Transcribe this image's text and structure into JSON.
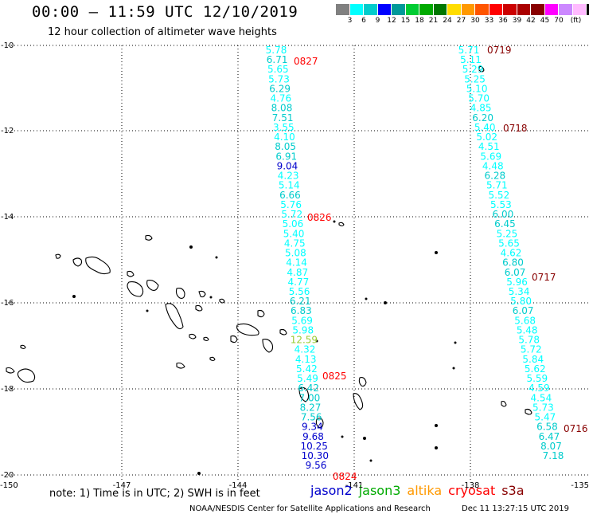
{
  "header": {
    "title": "00:00 – 11:59 UTC 12/10/2019",
    "subtitle": "12 hour collection of altimeter wave heights"
  },
  "colorbar": {
    "colors": [
      "#808080",
      "#00ffff",
      "#00cccc",
      "#0000ff",
      "#009999",
      "#00cc33",
      "#00aa00",
      "#007700",
      "#ffdd00",
      "#ff9900",
      "#ff5500",
      "#ff0000",
      "#cc0000",
      "#aa0000",
      "#880000",
      "#ff00ff",
      "#cc88ff",
      "#ffbbff",
      "#000000"
    ],
    "labels": [
      "3",
      "6",
      "9",
      "12",
      "15",
      "18",
      "21",
      "24",
      "27",
      "30",
      "33",
      "36",
      "39",
      "42",
      "45",
      "70",
      "(ft)"
    ]
  },
  "axes": {
    "lat_labels": [
      "-10",
      "-12",
      "-14",
      "-16",
      "-18",
      "-20"
    ],
    "lon_labels": [
      "-150",
      "-147",
      "-144",
      "-141",
      "-138",
      "-135"
    ]
  },
  "tracks": [
    {
      "name": "track-0827",
      "color": "#00cccc",
      "times": [
        {
          "label": "0827"
        },
        {
          "label": "0826"
        },
        {
          "label": "0825"
        },
        {
          "label": "0824"
        }
      ],
      "values": [
        {
          "v": "5.78",
          "c": "#00ffff"
        },
        {
          "v": "6.71",
          "c": "#00cccc"
        },
        {
          "v": "5.65",
          "c": "#00ffff"
        },
        {
          "v": "5.73",
          "c": "#00ffff"
        },
        {
          "v": "6.29",
          "c": "#00cccc"
        },
        {
          "v": "4.76",
          "c": "#00ffff"
        },
        {
          "v": "8.08",
          "c": "#00cccc"
        },
        {
          "v": "7.51",
          "c": "#00cccc"
        },
        {
          "v": "3.55",
          "c": "#00ffff"
        },
        {
          "v": "4.10",
          "c": "#00ffff"
        },
        {
          "v": "8.05",
          "c": "#00cccc"
        },
        {
          "v": "6.91",
          "c": "#00cccc"
        },
        {
          "v": "9.04",
          "c": "#0000cc"
        },
        {
          "v": "4.23",
          "c": "#00ffff"
        },
        {
          "v": "5.14",
          "c": "#00ffff"
        },
        {
          "v": "6.66",
          "c": "#00cccc"
        },
        {
          "v": "5.76",
          "c": "#00ffff"
        },
        {
          "v": "5.72",
          "c": "#00ffff"
        },
        {
          "v": "5.06",
          "c": "#00ffff"
        },
        {
          "v": "5.40",
          "c": "#00ffff"
        },
        {
          "v": "4.75",
          "c": "#00ffff"
        },
        {
          "v": "5.08",
          "c": "#00ffff"
        },
        {
          "v": "4.14",
          "c": "#00ffff"
        },
        {
          "v": "4.87",
          "c": "#00ffff"
        },
        {
          "v": "4.77",
          "c": "#00ffff"
        },
        {
          "v": "5.56",
          "c": "#00ffff"
        },
        {
          "v": "6.21",
          "c": "#00cccc"
        },
        {
          "v": "6.83",
          "c": "#00cccc"
        },
        {
          "v": "5.69",
          "c": "#00ffff"
        },
        {
          "v": "5.98",
          "c": "#00ffff"
        },
        {
          "v": "12.59",
          "c": "#99cc33"
        },
        {
          "v": "4.32",
          "c": "#00ffff"
        },
        {
          "v": "4.13",
          "c": "#00ffff"
        },
        {
          "v": "5.42",
          "c": "#00ffff"
        },
        {
          "v": "5.49",
          "c": "#00ffff"
        },
        {
          "v": "6.42",
          "c": "#00cccc"
        },
        {
          "v": "7.00",
          "c": "#00cccc"
        },
        {
          "v": "8.27",
          "c": "#00cccc"
        },
        {
          "v": "7.56",
          "c": "#00cccc"
        },
        {
          "v": "9.34",
          "c": "#0000cc"
        },
        {
          "v": "9.68",
          "c": "#0000cc"
        },
        {
          "v": "10.25",
          "c": "#0000cc"
        },
        {
          "v": "10.30",
          "c": "#0000cc"
        },
        {
          "v": "9.56",
          "c": "#0000cc"
        }
      ]
    },
    {
      "name": "track-0719",
      "color": "#00cccc",
      "times": [
        {
          "label": "0719"
        },
        {
          "label": "0718"
        },
        {
          "label": "0717"
        },
        {
          "label": "0716"
        }
      ],
      "values": [
        {
          "v": "5.71",
          "c": "#00ffff"
        },
        {
          "v": "5.11",
          "c": "#00ffff"
        },
        {
          "v": "5.29",
          "c": "#00ffff"
        },
        {
          "v": "5.25",
          "c": "#00ffff"
        },
        {
          "v": "5.10",
          "c": "#00ffff"
        },
        {
          "v": "5.70",
          "c": "#00ffff"
        },
        {
          "v": "4.85",
          "c": "#00ffff"
        },
        {
          "v": "6.20",
          "c": "#00cccc"
        },
        {
          "v": "5.40",
          "c": "#00ffff"
        },
        {
          "v": "5.02",
          "c": "#00ffff"
        },
        {
          "v": "4.51",
          "c": "#00ffff"
        },
        {
          "v": "5.69",
          "c": "#00ffff"
        },
        {
          "v": "4.48",
          "c": "#00ffff"
        },
        {
          "v": "6.28",
          "c": "#00cccc"
        },
        {
          "v": "5.71",
          "c": "#00ffff"
        },
        {
          "v": "5.52",
          "c": "#00ffff"
        },
        {
          "v": "5.53",
          "c": "#00ffff"
        },
        {
          "v": "6.00",
          "c": "#00cccc"
        },
        {
          "v": "6.45",
          "c": "#00cccc"
        },
        {
          "v": "5.25",
          "c": "#00ffff"
        },
        {
          "v": "5.65",
          "c": "#00ffff"
        },
        {
          "v": "4.62",
          "c": "#00ffff"
        },
        {
          "v": "6.80",
          "c": "#00cccc"
        },
        {
          "v": "6.07",
          "c": "#00cccc"
        },
        {
          "v": "5.96",
          "c": "#00ffff"
        },
        {
          "v": "5.34",
          "c": "#00ffff"
        },
        {
          "v": "5.80",
          "c": "#00ffff"
        },
        {
          "v": "6.07",
          "c": "#00cccc"
        },
        {
          "v": "5.68",
          "c": "#00ffff"
        },
        {
          "v": "5.48",
          "c": "#00ffff"
        },
        {
          "v": "5.78",
          "c": "#00ffff"
        },
        {
          "v": "5.72",
          "c": "#00ffff"
        },
        {
          "v": "5.84",
          "c": "#00ffff"
        },
        {
          "v": "5.62",
          "c": "#00ffff"
        },
        {
          "v": "5.59",
          "c": "#00ffff"
        },
        {
          "v": "4.59",
          "c": "#00ffff"
        },
        {
          "v": "4.54",
          "c": "#00ffff"
        },
        {
          "v": "5.73",
          "c": "#00ffff"
        },
        {
          "v": "5.47",
          "c": "#00ffff"
        },
        {
          "v": "6.58",
          "c": "#00cccc"
        },
        {
          "v": "6.47",
          "c": "#00cccc"
        },
        {
          "v": "8.07",
          "c": "#00cccc"
        },
        {
          "v": "7.18",
          "c": "#00cccc"
        }
      ]
    }
  ],
  "note": "note: 1) Time is in UTC; 2) SWH is in feet",
  "legend": [
    {
      "label": "jason2",
      "color": "#0000cc"
    },
    {
      "label": "jason3",
      "color": "#00aa00"
    },
    {
      "label": "altika",
      "color": "#ff9900"
    },
    {
      "label": "cryosat",
      "color": "#ff0000"
    },
    {
      "label": "s3a",
      "color": "#880000"
    }
  ],
  "footer": {
    "credit": "NOAA/NESDIS Center for Satellite Applications and Research",
    "timestamp": "Dec 11 13:27:15 UTC 2019"
  }
}
